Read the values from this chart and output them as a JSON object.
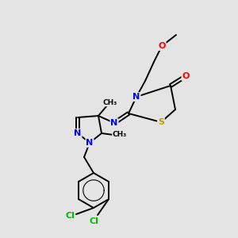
{
  "background_color": "#e4e4e4",
  "bond_color": "#000000",
  "atom_colors": {
    "N": "#0000ff",
    "O": "#ff0000",
    "S": "#b8a000",
    "Cl": "#00bb00",
    "C": "#000000"
  },
  "font_size": 8.0,
  "figsize": [
    3.0,
    3.0
  ],
  "dpi": 100
}
